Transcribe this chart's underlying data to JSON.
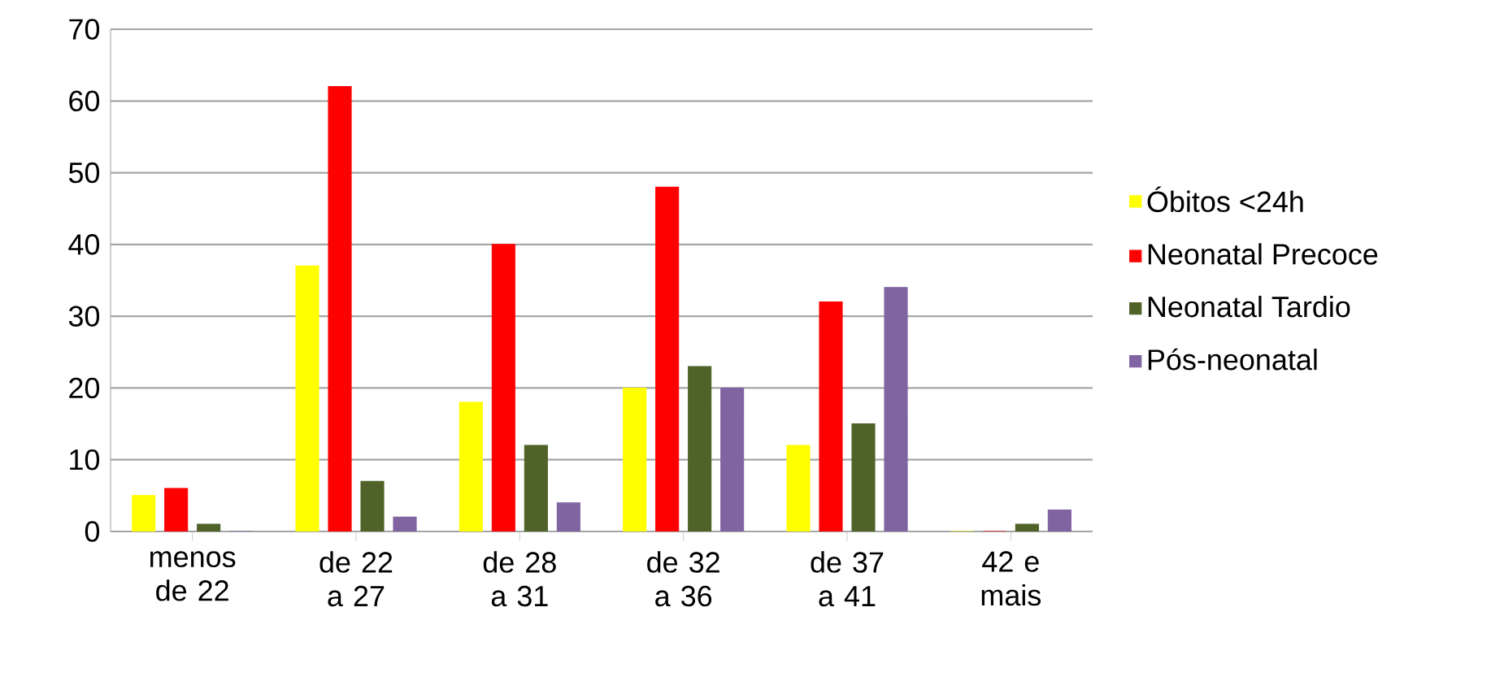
{
  "chart_data": {
    "type": "bar",
    "categories": [
      "menos de 22",
      "de 22 a 27",
      "de 28 a 31",
      "de 32 a 36",
      "de 37 a 41",
      "42 e mais"
    ],
    "series": [
      {
        "name": "Óbitos <24h",
        "color": "#ffff00",
        "values": [
          5,
          37,
          18,
          20,
          12,
          0
        ]
      },
      {
        "name": "Neonatal Precoce",
        "color": "#ff0000",
        "values": [
          6,
          62,
          40,
          48,
          32,
          0
        ]
      },
      {
        "name": "Neonatal Tardio",
        "color": "#4f6228",
        "values": [
          1,
          7,
          12,
          23,
          15,
          1
        ]
      },
      {
        "name": "Pós-neonatal",
        "color": "#8064a2",
        "values": [
          0,
          2,
          4,
          20,
          34,
          3
        ]
      }
    ],
    "ylim": [
      0,
      70
    ],
    "yticks": [
      0,
      10,
      20,
      30,
      40,
      50,
      60,
      70
    ],
    "grid": "y",
    "legend": "right"
  }
}
